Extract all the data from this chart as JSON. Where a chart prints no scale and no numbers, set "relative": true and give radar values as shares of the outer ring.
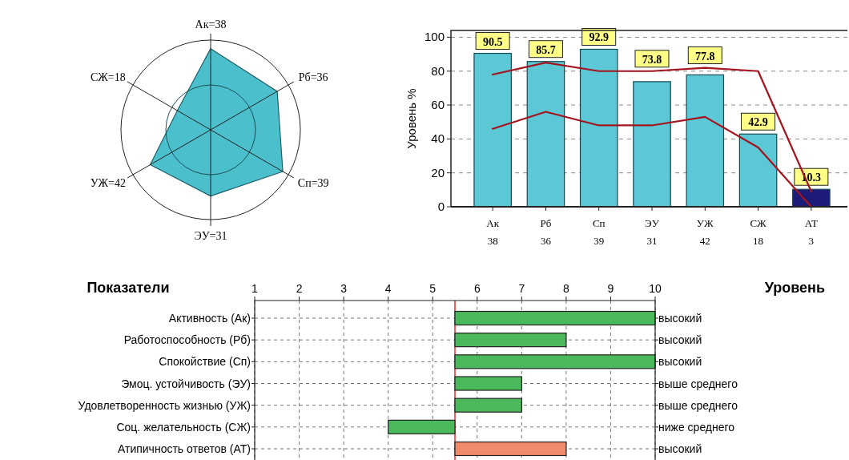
{
  "chart_data": [
    {
      "type": "radar",
      "relative": true,
      "grid": true,
      "categories": [
        "Ак=38",
        "Рб=36",
        "Сп=39",
        "ЭУ=31",
        "УЖ=42",
        "СЖ=18"
      ],
      "series": [
        {
          "color": "#4cbfcc",
          "values": [
            0.905,
            0.857,
            0.929,
            0.738,
            0.778,
            0.429
          ]
        }
      ]
    },
    {
      "type": "bar",
      "ylabel": "Уровень %",
      "ylim": [
        0,
        104
      ],
      "yticks": [
        0,
        20,
        40,
        60,
        80,
        100
      ],
      "grid": "y",
      "categories": [
        "Ак\n38",
        "Рб\n36",
        "Сп\n39",
        "ЭУ\n31",
        "УЖ\n42",
        "СЖ\n18",
        "АТ\n3"
      ],
      "series": [
        {
          "type": "bar",
          "colors": [
            "#5cc8d6",
            "#5cc8d6",
            "#5cc8d6",
            "#5cc8d6",
            "#5cc8d6",
            "#5cc8d6",
            "#1c1c78"
          ],
          "values": [
            90.5,
            85.7,
            92.9,
            73.8,
            77.8,
            42.9,
            10.3
          ],
          "value_labels": [
            "90.5",
            "85.7",
            "92.9",
            "73.8",
            "77.8",
            "42.9",
            "10.3"
          ]
        },
        {
          "type": "line",
          "color": "#a3141e",
          "values": [
            78,
            85,
            80,
            80,
            82,
            80,
            9
          ]
        },
        {
          "type": "line",
          "color": "#a3141e",
          "values": [
            46,
            56,
            48,
            48,
            53,
            35,
            0
          ]
        }
      ]
    },
    {
      "type": "bar",
      "orientation": "horizontal",
      "ylabel": "Показатели",
      "y2label": "Уровень",
      "xlim": [
        1,
        10
      ],
      "xticks": [
        1,
        2,
        3,
        4,
        5,
        6,
        7,
        8,
        9,
        10
      ],
      "grid": true,
      "categories": [
        "Активность (Ак)",
        "Работоспособность (Рб)",
        "Спокойствие (Сп)",
        "Эмоц. устойчивость (ЭУ)",
        "Удовлетворенность жизнью (УЖ)",
        "Соц. желательность (СЖ)",
        "Атипичность ответов (АТ)"
      ],
      "base": [
        5.5,
        5.5,
        5.5,
        5.5,
        5.5,
        5.5,
        5.5
      ],
      "values": [
        4.5,
        2.5,
        4.5,
        1.5,
        1.5,
        -1.5,
        2.5
      ],
      "colors": [
        "#4cb85c",
        "#4cb85c",
        "#4cb85c",
        "#4cb85c",
        "#4cb85c",
        "#4cb85c",
        "#f08c6c"
      ],
      "ref_lines": [
        {
          "axis": "x",
          "value": 5.5,
          "color": "#e03030"
        }
      ],
      "annotations": [
        "высокий",
        "высокий",
        "высокий",
        "выше среднего",
        "выше среднего",
        "ниже среднего",
        "высокий"
      ]
    }
  ]
}
